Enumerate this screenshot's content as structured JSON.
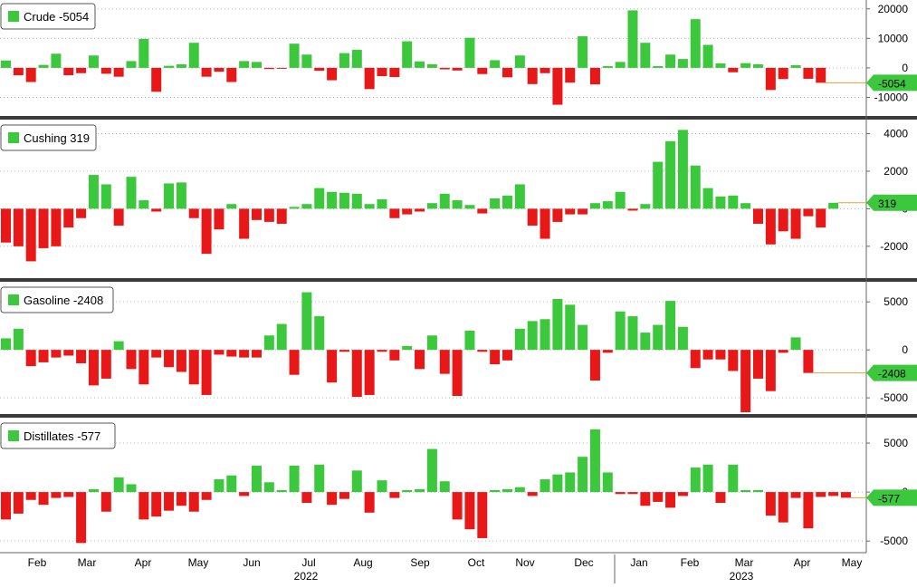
{
  "colors": {
    "positive": "#3cc83c",
    "negative": "#e81818",
    "grid": "#b8b8b8",
    "separator": "#3a3a3a",
    "axis": "#666666",
    "last_value_line": "#e3a23b"
  },
  "chart_data": [
    {
      "type": "bar",
      "legend": "Crude -5054",
      "series_name": "Crude",
      "last_value_label": "-5054",
      "ylim": [
        -16000,
        23000
      ],
      "y_ticks": [
        20000,
        10000,
        0,
        -10000
      ],
      "y_tick_labels": [
        "20000",
        "10000",
        "0",
        "-10000"
      ],
      "last_value": -5054,
      "values": [
        2500,
        -2500,
        -4800,
        1000,
        4800,
        -2500,
        -1800,
        4200,
        -2000,
        -3000,
        2300,
        9800,
        -8100,
        700,
        1200,
        8500,
        -3000,
        -1300,
        -4800,
        2300,
        2000,
        -400,
        -200,
        8200,
        4500,
        -1000,
        -4200,
        5000,
        6100,
        -7200,
        -2800,
        -3100,
        9000,
        2200,
        1200,
        -500,
        -900,
        10200,
        -2100,
        2600,
        -3200,
        4200,
        -5500,
        -1800,
        -12500,
        -5000,
        10700,
        -5600,
        600,
        2000,
        19500,
        8500,
        600,
        4500,
        3000,
        16500,
        7800,
        1500,
        -1500,
        1600,
        1200,
        -7500,
        -3800,
        900,
        -3700,
        -5054
      ]
    },
    {
      "type": "bar",
      "legend": "Cushing 319",
      "series_name": "Cushing",
      "last_value_label": "319",
      "ylim": [
        -3600,
        4700
      ],
      "y_ticks": [
        4000,
        2000,
        0,
        -2000
      ],
      "y_tick_labels": [
        "4000",
        "2000",
        "0",
        "-2000"
      ],
      "last_value": 319,
      "values": [
        -1800,
        -2000,
        -2800,
        -2100,
        -2000,
        -1000,
        -500,
        1800,
        1300,
        -900,
        1700,
        450,
        -150,
        1350,
        1400,
        -500,
        -2400,
        -1100,
        250,
        -1600,
        -600,
        -700,
        -800,
        100,
        250,
        1100,
        900,
        850,
        800,
        250,
        500,
        -500,
        -300,
        -150,
        300,
        800,
        450,
        200,
        -250,
        550,
        700,
        1300,
        -900,
        -1600,
        -700,
        -300,
        -300,
        300,
        400,
        900,
        -100,
        250,
        2500,
        3600,
        4200,
        2300,
        1100,
        650,
        700,
        300,
        -800,
        -1900,
        -1200,
        -1600,
        -400,
        -1000,
        319
      ]
    },
    {
      "type": "bar",
      "legend": "Gasoline -2408",
      "series_name": "Gasoline",
      "last_value_label": "-2408",
      "ylim": [
        -6500,
        7000
      ],
      "y_ticks": [
        5000,
        0,
        -5000
      ],
      "y_tick_labels": [
        "5000",
        "0",
        "-5000"
      ],
      "last_value": -2408,
      "values": [
        1200,
        2200,
        -1700,
        -1300,
        -800,
        -600,
        -1400,
        -3700,
        -3000,
        900,
        -2000,
        -3600,
        -800,
        -1800,
        -2300,
        -3600,
        -4700,
        -500,
        -700,
        -800,
        -800,
        1500,
        2700,
        -2600,
        6000,
        3500,
        -3400,
        -200,
        -4900,
        -4700,
        -200,
        -1100,
        400,
        -2000,
        1500,
        -2500,
        -4800,
        2000,
        -200,
        -1500,
        -1100,
        2200,
        3000,
        3200,
        5300,
        4700,
        2600,
        -3200,
        -300,
        4000,
        3500,
        1800,
        2600,
        5100,
        2400,
        -1900,
        -1000,
        -1000,
        -2200,
        -6500,
        -3000,
        -4300,
        -300,
        1300,
        -2408
      ]
    },
    {
      "type": "bar",
      "legend": "Distillates -577",
      "series_name": "Distillates",
      "last_value_label": "-577",
      "ylim": [
        -6000,
        7500
      ],
      "y_ticks": [
        5000,
        0,
        -5000
      ],
      "y_tick_labels": [
        "5000",
        "0",
        "-5000"
      ],
      "last_value": -577,
      "values": [
        -2800,
        -2200,
        -800,
        -1300,
        -600,
        -500,
        -5200,
        300,
        -2000,
        1500,
        800,
        -2800,
        -2500,
        -1900,
        -1400,
        -2000,
        -800,
        1300,
        1700,
        -400,
        2700,
        1000,
        200,
        2700,
        -1100,
        2800,
        -1300,
        -700,
        2200,
        -2100,
        1200,
        -600,
        200,
        300,
        4400,
        1100,
        -2800,
        -3800,
        -4700,
        200,
        300,
        500,
        -400,
        1300,
        1800,
        2000,
        3600,
        6400,
        2000,
        -200,
        -200,
        -1400,
        -1000,
        -1600,
        -400,
        2500,
        2800,
        -1100,
        2800,
        200,
        200,
        -2400,
        -3100,
        -600,
        -3700,
        -500,
        -400,
        -577
      ]
    }
  ],
  "x_axis": {
    "month_labels": [
      "Feb",
      "Mar",
      "Apr",
      "May",
      "Jun",
      "Jul",
      "Aug",
      "Sep",
      "Oct",
      "Nov",
      "Dec",
      "Jan",
      "Feb",
      "Mar",
      "Apr",
      "May"
    ],
    "years": [
      {
        "label": "2022",
        "month_index": 5
      },
      {
        "label": "2023",
        "month_index": 13
      }
    ]
  }
}
